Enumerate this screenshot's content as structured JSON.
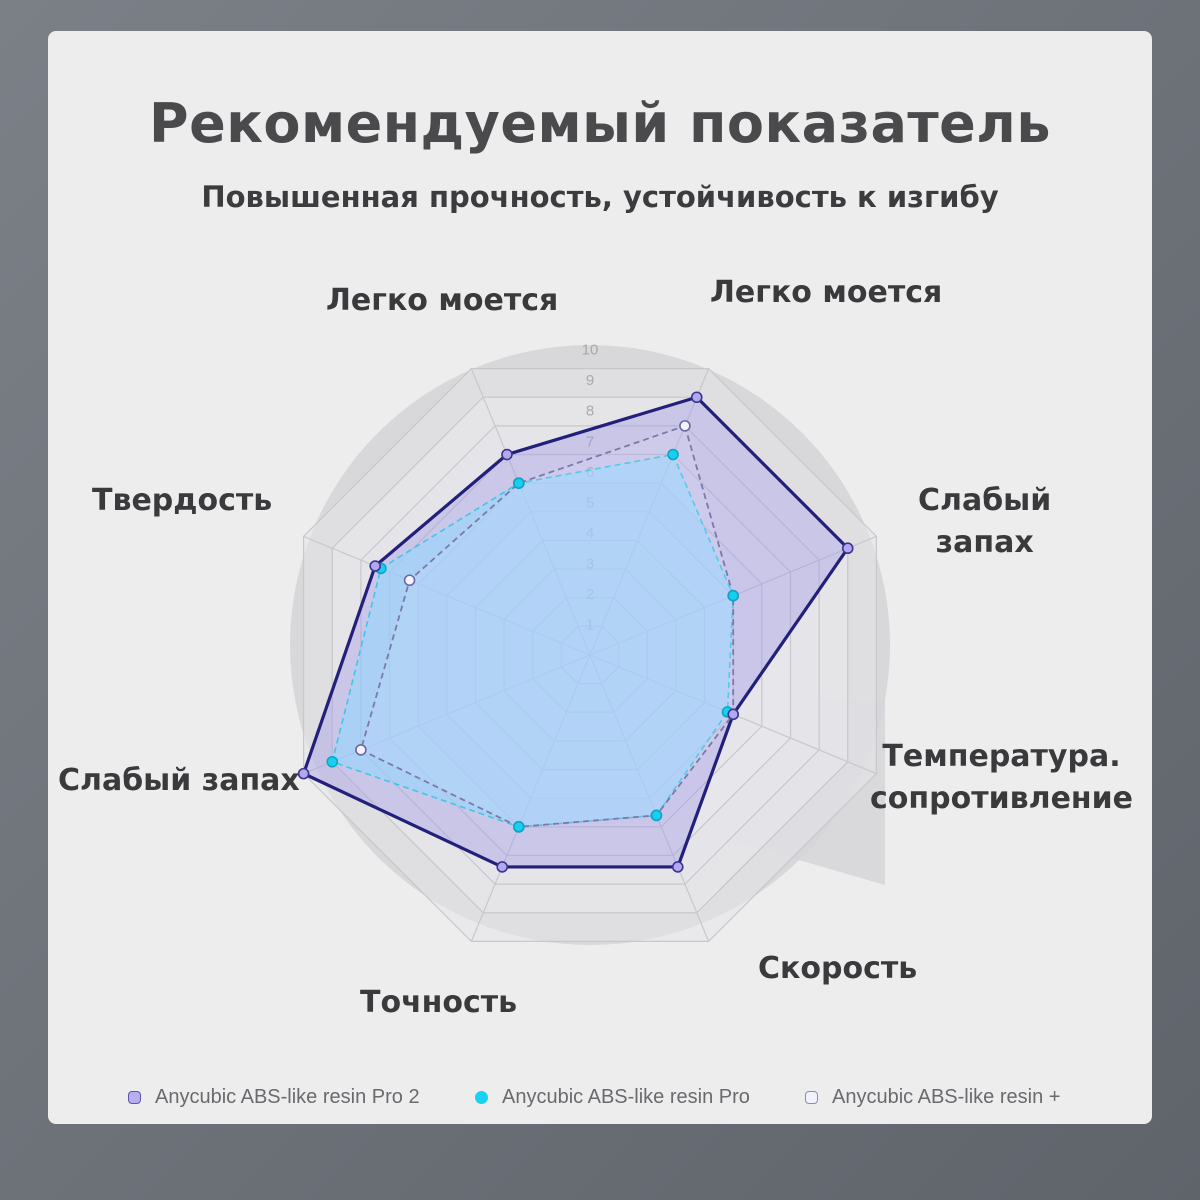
{
  "title": "Рекомендуемый показатель",
  "subtitle": "Повышенная прочность, устойчивость к изгибу",
  "axis_labels": [
    "Легко моется",
    "Слабый запах",
    "Температура. сопротивление",
    "Скорость",
    "Точность",
    "Слабый запах",
    "Твердость",
    "Легко моется"
  ],
  "axis_label_lines": {
    "right_odor": [
      "Слабый",
      "запах"
    ],
    "temperature": [
      "Температура.",
      "сопротивление"
    ]
  },
  "colors": {
    "series_pro2": "#22207a",
    "series_pro2_fill": "#a59ce6",
    "series_pro": "#3fc7e6",
    "series_pro_fill": "#8fd8ff",
    "series_plus": "#7a7aa8",
    "series_plus_fill": "#e9e9fb"
  },
  "chart_data": {
    "type": "radar",
    "title": "Рекомендуемый показатель",
    "subtitle": "Повышенная прочность, устойчивость к изгибу",
    "axes": [
      "Легко моется",
      "Слабый запах",
      "Температура. сопротивление",
      "Скорость",
      "Точность",
      "Слабый запах",
      "Твердость",
      "Легко моется"
    ],
    "rlim": [
      0,
      10
    ],
    "rticks": [
      "1",
      "2",
      "3",
      "4",
      "5",
      "6",
      "7",
      "8",
      "9",
      "10"
    ],
    "grid": true,
    "legend_position": "bottom",
    "series": [
      {
        "name": "Anycubic ABS-like resin Pro 2",
        "values": [
          9.0,
          9.0,
          5.0,
          7.4,
          7.4,
          10.0,
          7.5,
          7.0
        ]
      },
      {
        "name": "Anycubic ABS-like resin Pro",
        "values": [
          7.0,
          5.0,
          4.8,
          5.6,
          6.0,
          9.0,
          7.3,
          6.0
        ]
      },
      {
        "name": "Anycubic ABS-like resin +",
        "values": [
          8.0,
          5.0,
          5.0,
          5.6,
          6.0,
          8.0,
          6.3,
          6.0
        ]
      }
    ]
  }
}
